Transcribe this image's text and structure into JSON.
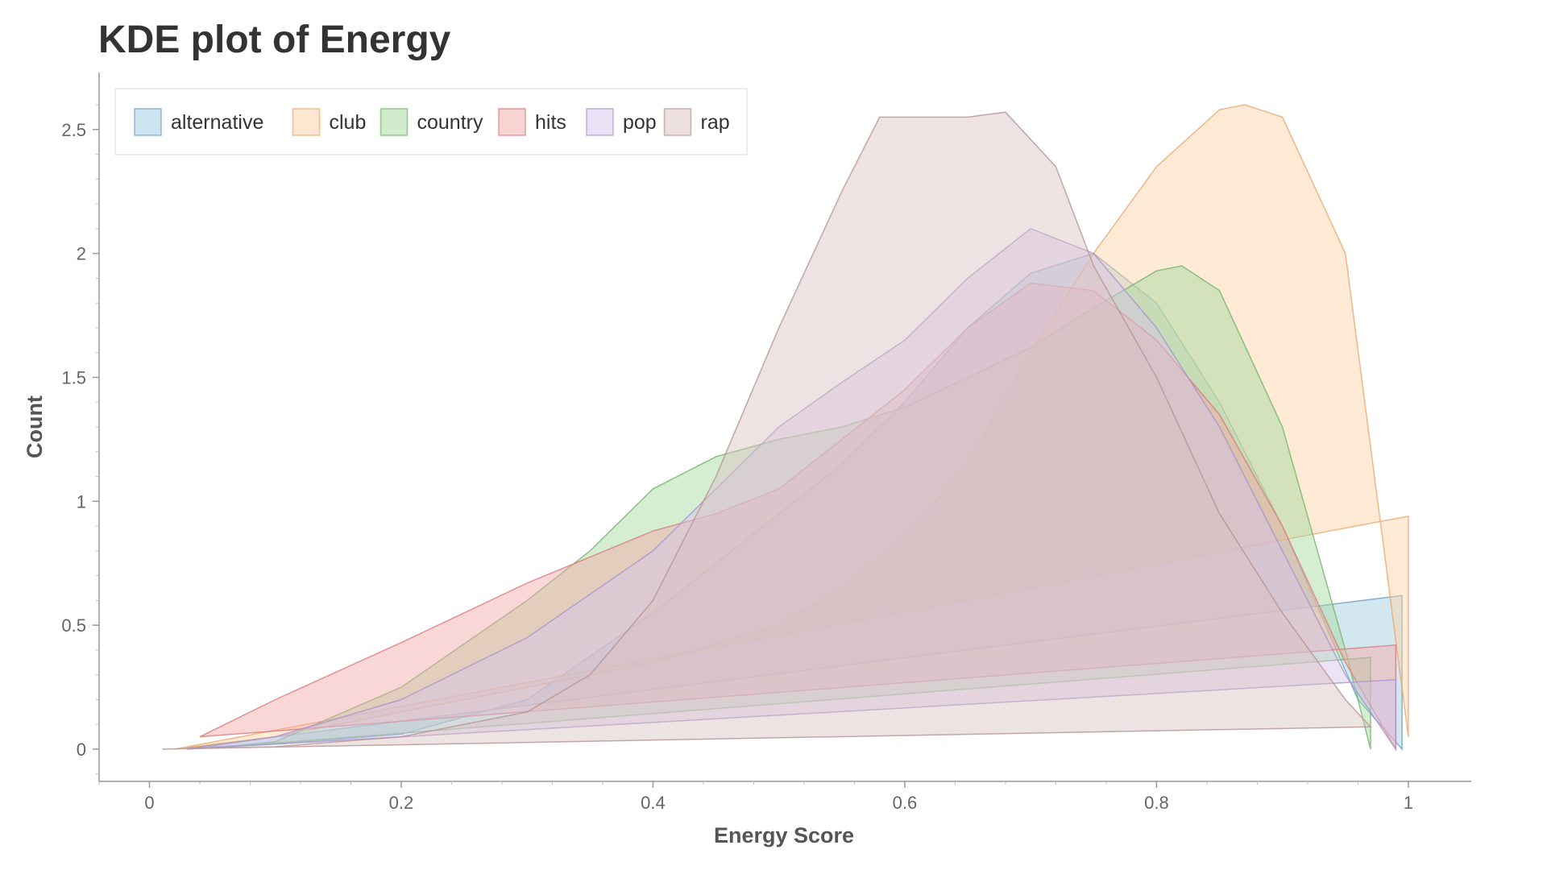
{
  "chart_data": {
    "type": "area",
    "title": "KDE plot of Energy",
    "xlabel": "Energy Score",
    "ylabel": "Count",
    "xlim": [
      -0.04,
      1.05
    ],
    "ylim": [
      -0.13,
      2.73
    ],
    "xticks": [
      0,
      0.2,
      0.4,
      0.6,
      0.8,
      1
    ],
    "xtick_labels": [
      "0",
      "0.2",
      "0.4",
      "0.6",
      "0.8",
      "1"
    ],
    "yticks": [
      0,
      0.5,
      1,
      1.5,
      2,
      2.5
    ],
    "ytick_labels": [
      "0",
      "0.5",
      "1",
      "1.5",
      "2",
      "2.5"
    ],
    "grid": false,
    "legend_position": "top-left",
    "fill_opacity": 0.45,
    "series": [
      {
        "name": "alternative",
        "color": "#9ecae1",
        "stroke": "#6f9fc0",
        "x": [
          0.03,
          0.1,
          0.2,
          0.3,
          0.4,
          0.45,
          0.5,
          0.55,
          0.6,
          0.65,
          0.7,
          0.75,
          0.8,
          0.85,
          0.9,
          0.93,
          0.96,
          0.995
        ],
        "y": [
          0.005,
          0.02,
          0.06,
          0.2,
          0.55,
          0.75,
          0.95,
          1.15,
          1.4,
          1.7,
          1.92,
          2.0,
          1.8,
          1.4,
          0.9,
          0.55,
          0.2,
          0.0
        ],
        "end": 0.62
      },
      {
        "name": "club",
        "color": "#fdd0a2",
        "stroke": "#e8a970",
        "x": [
          0.02,
          0.1,
          0.2,
          0.3,
          0.4,
          0.5,
          0.55,
          0.6,
          0.65,
          0.7,
          0.75,
          0.8,
          0.85,
          0.87,
          0.9,
          0.95,
          1.0
        ],
        "y": [
          0.0,
          0.05,
          0.15,
          0.25,
          0.35,
          0.5,
          0.65,
          0.85,
          1.15,
          1.6,
          2.0,
          2.35,
          2.58,
          2.6,
          2.55,
          2.0,
          0.05
        ],
        "end": 0.94
      },
      {
        "name": "country",
        "color": "#a1d99b",
        "stroke": "#72b56b",
        "x": [
          0.05,
          0.1,
          0.2,
          0.3,
          0.35,
          0.4,
          0.45,
          0.5,
          0.55,
          0.6,
          0.65,
          0.7,
          0.75,
          0.8,
          0.82,
          0.85,
          0.9,
          0.95,
          0.97
        ],
        "y": [
          0.005,
          0.03,
          0.25,
          0.6,
          0.8,
          1.05,
          1.18,
          1.25,
          1.3,
          1.38,
          1.5,
          1.62,
          1.78,
          1.93,
          1.95,
          1.85,
          1.3,
          0.4,
          0.0
        ],
        "end": 0.37
      },
      {
        "name": "hits",
        "color": "#f4a6a6",
        "stroke": "#d97a7a",
        "x": [
          0.04,
          0.1,
          0.2,
          0.3,
          0.4,
          0.45,
          0.5,
          0.55,
          0.6,
          0.65,
          0.7,
          0.75,
          0.8,
          0.85,
          0.9,
          0.95,
          0.99
        ],
        "y": [
          0.05,
          0.2,
          0.43,
          0.67,
          0.88,
          0.95,
          1.05,
          1.25,
          1.45,
          1.7,
          1.88,
          1.85,
          1.65,
          1.35,
          0.9,
          0.35,
          0.0
        ],
        "end": 0.42
      },
      {
        "name": "pop",
        "color": "#d4c4ec",
        "stroke": "#a893cc",
        "x": [
          0.03,
          0.1,
          0.2,
          0.3,
          0.4,
          0.45,
          0.5,
          0.55,
          0.6,
          0.65,
          0.7,
          0.75,
          0.8,
          0.85,
          0.9,
          0.95,
          0.99
        ],
        "y": [
          0.0,
          0.05,
          0.2,
          0.45,
          0.8,
          1.05,
          1.3,
          1.48,
          1.65,
          1.9,
          2.1,
          2.0,
          1.7,
          1.3,
          0.8,
          0.3,
          0.0
        ],
        "end": 0.28
      },
      {
        "name": "rap",
        "color": "#d9c0c0",
        "stroke": "#b59494",
        "x": [
          0.01,
          0.1,
          0.2,
          0.3,
          0.35,
          0.4,
          0.45,
          0.5,
          0.55,
          0.58,
          0.62,
          0.65,
          0.68,
          0.72,
          0.75,
          0.8,
          0.85,
          0.9,
          0.95,
          0.97
        ],
        "y": [
          0.0,
          0.01,
          0.05,
          0.15,
          0.3,
          0.6,
          1.1,
          1.7,
          2.25,
          2.55,
          2.55,
          2.55,
          2.57,
          2.35,
          1.95,
          1.5,
          0.95,
          0.55,
          0.2,
          0.09
        ],
        "end": 0.09
      }
    ]
  }
}
